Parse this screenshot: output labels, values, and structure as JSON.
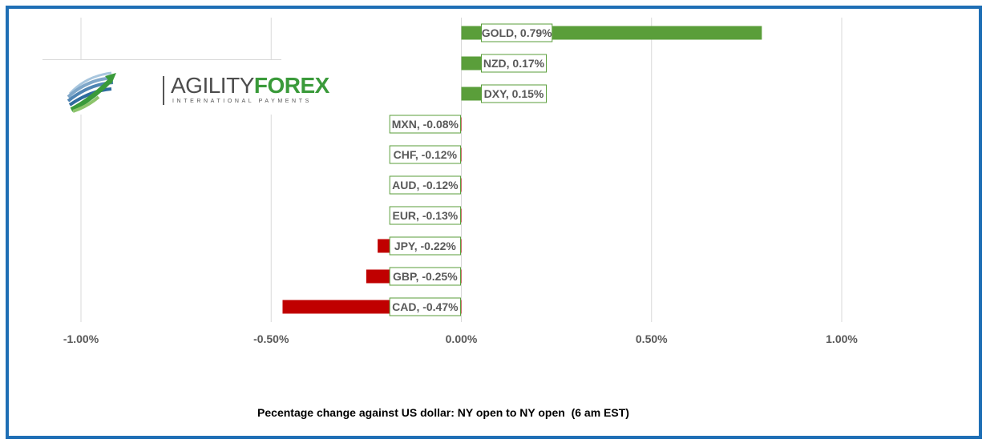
{
  "chart_data": {
    "type": "bar",
    "orientation": "horizontal",
    "categories": [
      "GOLD",
      "NZD",
      "DXY",
      "MXN",
      "CHF",
      "AUD",
      "EUR",
      "JPY",
      "GBP",
      "CAD"
    ],
    "values": [
      0.79,
      0.17,
      0.15,
      -0.08,
      -0.12,
      -0.12,
      -0.13,
      -0.22,
      -0.25,
      -0.47
    ],
    "data_labels": [
      "GOLD, 0.79%",
      "NZD, 0.17%",
      "DXY, 0.15%",
      "MXN, -0.08%",
      "CHF, -0.12%",
      "AUD, -0.12%",
      "EUR, -0.13%",
      "JPY, -0.22%",
      "GBP, -0.25%",
      "CAD, -0.47%"
    ],
    "xlim": [
      -1.0,
      1.0
    ],
    "x_ticks": [
      -1.0,
      -0.5,
      0.0,
      0.5,
      1.0
    ],
    "x_tick_labels": [
      "-1.00%",
      "-0.50%",
      "0.00%",
      "0.50%",
      "1.00%"
    ],
    "caption": "Pecentage change against US dollar: NY open to NY open  (6 am EST)",
    "grid": true,
    "colors": {
      "positive": "#5a9e3a",
      "negative": "#c00000",
      "label_border": "#5a9e3a",
      "frame": "#1f6fb5",
      "grid": "#d9d9d9"
    }
  },
  "logo": {
    "name_part1": "AGILITY",
    "name_part2": "FOREX",
    "tagline": "INTERNATIONAL PAYMENTS",
    "icon": "globe-swoosh-icon"
  }
}
